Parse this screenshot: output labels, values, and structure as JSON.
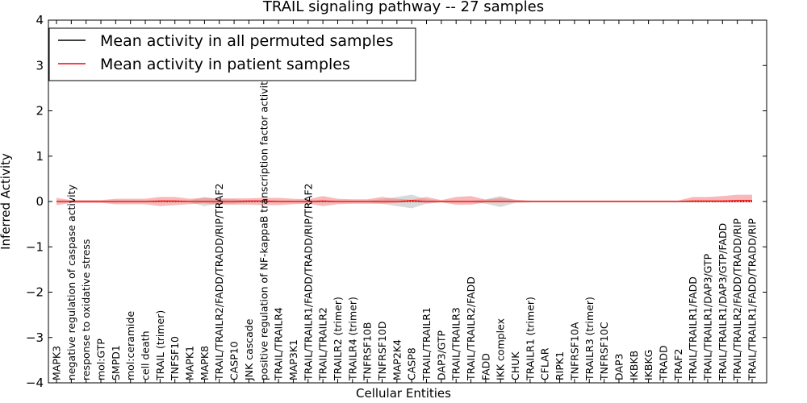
{
  "chart_data": {
    "type": "line",
    "title": "TRAIL signaling pathway -- 27 samples",
    "xlabel": "Cellular Entities",
    "ylabel": "Inferred Activity",
    "ylim": [
      -4,
      4
    ],
    "yticks": [
      -4,
      -3,
      -2,
      -1,
      0,
      1,
      2,
      3,
      4
    ],
    "ytick_labels": [
      "−4",
      "−3",
      "−2",
      "−1",
      "0",
      "1",
      "2",
      "3",
      "4"
    ],
    "legend_position": "top-left",
    "colors": {
      "permuted": "#000000",
      "patient": "#ff0000",
      "band_patient": "#f08080",
      "band_permuted": "#a0a0a0"
    },
    "categories": [
      "MAPK3",
      "negative regulation of caspase activity",
      "response to oxidative stress",
      "mol:GTP",
      "SMPD1",
      "mol:ceramide",
      "cell death",
      "TRAIL (trimer)",
      "TNFSF10",
      "MAPK1",
      "MAPK8",
      "TRAIL/TRAILR2/FADD/TRADD/RIP/TRAF2",
      "CASP10",
      "JNK cascade",
      "positive regulation of NF-kappaB transcription factor activity",
      "TRAIL/TRAILR4",
      "MAP3K1",
      "TRAIL/TRAILR1/FADD/TRADD/RIP/TRAF2",
      "TRAIL/TRAILR2",
      "TRAILR2 (trimer)",
      "TRAILR4 (trimer)",
      "TNFRSF10B",
      "TNFRSF10D",
      "MAP2K4",
      "CASP8",
      "TRAIL/TRAILR1",
      "DAP3/GTP",
      "TRAIL/TRAILR3",
      "TRAIL/TRAILR2/FADD",
      "FADD",
      "IKK complex",
      "CHUK",
      "TRAILR1 (trimer)",
      "CFLAR",
      "RIPK1",
      "TNFRSF10A",
      "TRAILR3 (trimer)",
      "TNFRSF10C",
      "DAP3",
      "IKBKB",
      "IKBKG",
      "TRADD",
      "TRAF2",
      "TRAIL/TRAILR1/FADD",
      "TRAIL/TRAILR1/DAP3/GTP",
      "TRAIL/TRAILR1/DAP3/GTP/FADD",
      "TRAIL/TRAILR2/FADD/TRADD/RIP",
      "TRAIL/TRAILR1/FADD/TRADD/RIP"
    ],
    "series": [
      {
        "name": "Mean activity in all permuted samples",
        "color": "#000000",
        "style": "dotted",
        "values": [
          0,
          0,
          0,
          0,
          0,
          0,
          0,
          0,
          0,
          0,
          0,
          0,
          0,
          0,
          0,
          0,
          0,
          0,
          0,
          0,
          0,
          0,
          0,
          0,
          0,
          0,
          0,
          0,
          0,
          0,
          0,
          0,
          0,
          0,
          0,
          0,
          0,
          0,
          0,
          0,
          0,
          0,
          0,
          0,
          0,
          0,
          0,
          0
        ],
        "band_low": [
          -0.02,
          -0.02,
          -0.02,
          -0.02,
          -0.02,
          -0.02,
          -0.02,
          -0.02,
          -0.02,
          -0.02,
          -0.1,
          -0.05,
          -0.05,
          -0.02,
          -0.02,
          -0.02,
          -0.02,
          -0.02,
          -0.02,
          -0.02,
          -0.02,
          -0.02,
          -0.05,
          -0.1,
          -0.15,
          -0.05,
          -0.02,
          -0.02,
          -0.02,
          -0.05,
          -0.12,
          -0.03,
          -0.02,
          -0.02,
          -0.02,
          -0.02,
          -0.02,
          -0.02,
          -0.02,
          -0.02,
          -0.02,
          -0.02,
          -0.02,
          -0.02,
          -0.02,
          -0.02,
          -0.02,
          -0.02
        ],
        "band_high": [
          0.02,
          0.02,
          0.02,
          0.02,
          0.02,
          0.02,
          0.02,
          0.02,
          0.02,
          0.02,
          0.1,
          0.05,
          0.05,
          0.02,
          0.02,
          0.02,
          0.02,
          0.02,
          0.02,
          0.02,
          0.02,
          0.02,
          0.05,
          0.1,
          0.15,
          0.05,
          0.02,
          0.02,
          0.02,
          0.05,
          0.12,
          0.03,
          0.02,
          0.02,
          0.02,
          0.02,
          0.02,
          0.02,
          0.02,
          0.02,
          0.02,
          0.02,
          0.02,
          0.02,
          0.02,
          0.02,
          0.02,
          0.02
        ]
      },
      {
        "name": "Mean activity in patient samples",
        "color": "#ff0000",
        "style": "solid",
        "values": [
          0,
          0,
          0,
          0,
          0,
          0,
          0,
          0.01,
          0.01,
          0,
          0,
          0,
          0,
          0.01,
          0.01,
          0,
          0,
          0,
          0.01,
          0,
          0,
          0,
          0,
          0,
          0.02,
          0,
          0,
          0,
          0,
          0,
          0,
          0,
          0,
          0,
          0,
          0,
          0,
          0,
          0,
          0,
          0,
          0,
          0,
          0.01,
          0.01,
          0.01,
          0.02,
          0.02
        ],
        "band_low": [
          -0.08,
          -0.03,
          -0.03,
          -0.03,
          -0.06,
          -0.06,
          -0.06,
          -0.1,
          -0.08,
          -0.06,
          -0.04,
          -0.07,
          -0.07,
          -0.07,
          -0.08,
          -0.08,
          -0.06,
          -0.05,
          -0.1,
          -0.06,
          -0.05,
          -0.05,
          -0.05,
          -0.03,
          -0.01,
          -0.03,
          -0.02,
          -0.07,
          -0.07,
          -0.02,
          -0.02,
          -0.01,
          -0.01,
          -0.01,
          -0.01,
          -0.01,
          -0.01,
          -0.01,
          -0.01,
          -0.01,
          -0.01,
          -0.01,
          -0.01,
          -0.02,
          -0.02,
          -0.02,
          -0.02,
          -0.02
        ],
        "band_high": [
          0.08,
          0.03,
          0.03,
          0.03,
          0.06,
          0.06,
          0.06,
          0.1,
          0.1,
          0.06,
          0.08,
          0.07,
          0.07,
          0.07,
          0.08,
          0.08,
          0.06,
          0.05,
          0.12,
          0.06,
          0.05,
          0.05,
          0.1,
          0.06,
          0.04,
          0.1,
          0.03,
          0.1,
          0.12,
          0.04,
          0.08,
          0.04,
          0.02,
          0.02,
          0.02,
          0.02,
          0.02,
          0.02,
          0.02,
          0.02,
          0.02,
          0.02,
          0.02,
          0.1,
          0.1,
          0.12,
          0.15,
          0.15
        ]
      }
    ]
  }
}
